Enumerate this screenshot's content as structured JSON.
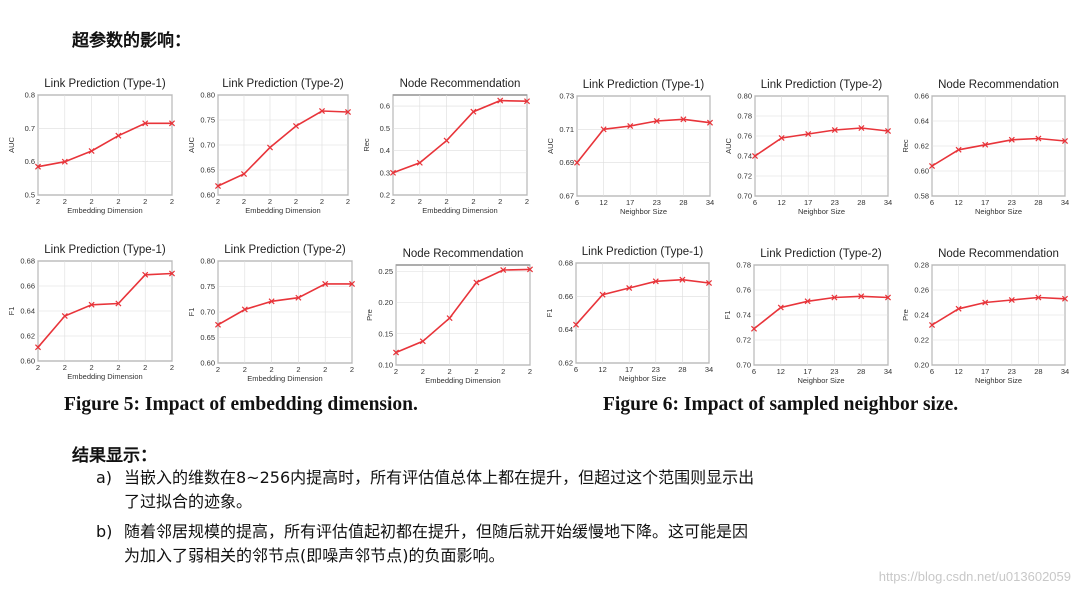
{
  "heading": "超参数的影响：",
  "figures": {
    "fig5_caption": "Figure 5: Impact of embedding dimension.",
    "fig6_caption": "Figure 6: Impact of sampled neighbor size."
  },
  "results": {
    "title": "结果显示：",
    "a_marker": "a)",
    "a_line1": "当嵌入的维数在8~256内提高时，所有评估值总体上都在提升，但超过这个范围则显示出",
    "a_line2": "了过拟合的迹象。",
    "b_marker": "b)",
    "b_line1": "随着邻居规模的提高，所有评估值起初都在提升，但随后就开始缓慢地下降。这可能是因",
    "b_line2": "为加入了弱相关的邻节点(即噪声邻节点)的负面影响。"
  },
  "watermark": "https://blog.csdn.net/u013602059",
  "colors": {
    "line": "#e8343a",
    "grid": "#dddddd",
    "axis": "#333333"
  },
  "chart_data": [
    {
      "id": "f5-lp1-auc",
      "type": "line",
      "title": "Link Prediction (Type-1)",
      "xlabel": "Embedding Dimension",
      "ylabel": "AUC",
      "categories": [
        "2",
        "2",
        "2",
        "2",
        "2",
        "2"
      ],
      "ylim": [
        0.5,
        0.8
      ],
      "yticks": [
        "0.5",
        "0.6",
        "0.7",
        "0.8"
      ],
      "values": [
        0.585,
        0.6,
        0.632,
        0.678,
        0.715,
        0.715
      ]
    },
    {
      "id": "f5-lp2-auc",
      "type": "line",
      "title": "Link Prediction (Type-2)",
      "xlabel": "Embedding Dimension",
      "ylabel": "AUC",
      "categories": [
        "2",
        "2",
        "2",
        "2",
        "2",
        "2"
      ],
      "ylim": [
        0.6,
        0.8
      ],
      "yticks": [
        "0.60",
        "0.65",
        "0.70",
        "0.75",
        "0.80"
      ],
      "values": [
        0.618,
        0.642,
        0.695,
        0.738,
        0.768,
        0.766
      ]
    },
    {
      "id": "f5-nr-rec",
      "type": "line",
      "title": "Node Recommendation",
      "xlabel": "Embedding Dimension",
      "ylabel": "Rec",
      "categories": [
        "2",
        "2",
        "2",
        "2",
        "2",
        "2"
      ],
      "ylim": [
        0.2,
        0.65
      ],
      "yticks": [
        "0.2",
        "0.3",
        "0.4",
        "0.5",
        "0.6"
      ],
      "values": [
        0.3,
        0.345,
        0.445,
        0.575,
        0.625,
        0.622
      ]
    },
    {
      "id": "f6-lp1-auc",
      "type": "line",
      "title": "Link Prediction (Type-1)",
      "xlabel": "Neighbor Size",
      "ylabel": "AUC",
      "categories": [
        "6",
        "12",
        "17",
        "23",
        "28",
        "34"
      ],
      "ylim": [
        0.67,
        0.73
      ],
      "yticks": [
        "0.67",
        "0.69",
        "0.71",
        "0.73"
      ],
      "values": [
        0.69,
        0.71,
        0.712,
        0.715,
        0.716,
        0.714
      ]
    },
    {
      "id": "f6-lp2-auc",
      "type": "line",
      "title": "Link Prediction (Type-2)",
      "xlabel": "Neighbor Size",
      "ylabel": "AUC",
      "categories": [
        "6",
        "12",
        "17",
        "23",
        "28",
        "34"
      ],
      "ylim": [
        0.7,
        0.8
      ],
      "yticks": [
        "0.70",
        "0.72",
        "0.74",
        "0.76",
        "0.78",
        "0.80"
      ],
      "values": [
        0.74,
        0.758,
        0.762,
        0.766,
        0.768,
        0.765
      ]
    },
    {
      "id": "f6-nr-rec",
      "type": "line",
      "title": "Node Recommendation",
      "xlabel": "Neighbor Size",
      "ylabel": "Rec",
      "categories": [
        "6",
        "12",
        "17",
        "23",
        "28",
        "34"
      ],
      "ylim": [
        0.58,
        0.66
      ],
      "yticks": [
        "0.58",
        "0.60",
        "0.62",
        "0.64",
        "0.66"
      ],
      "values": [
        0.604,
        0.617,
        0.621,
        0.625,
        0.626,
        0.624
      ]
    },
    {
      "id": "f5-lp1-f1",
      "type": "line",
      "title": "Link Prediction (Type-1)",
      "xlabel": "Embedding Dimension",
      "ylabel": "F1",
      "categories": [
        "2",
        "2",
        "2",
        "2",
        "2",
        "2"
      ],
      "ylim": [
        0.6,
        0.68
      ],
      "yticks": [
        "0.60",
        "0.62",
        "0.64",
        "0.66",
        "0.68"
      ],
      "values": [
        0.611,
        0.636,
        0.645,
        0.646,
        0.669,
        0.67
      ]
    },
    {
      "id": "f5-lp2-f1",
      "type": "line",
      "title": "Link Prediction (Type-2)",
      "xlabel": "Embedding Dimension",
      "ylabel": "F1",
      "categories": [
        "2",
        "2",
        "2",
        "2",
        "2",
        "2"
      ],
      "ylim": [
        0.6,
        0.8
      ],
      "yticks": [
        "0.60",
        "0.65",
        "0.70",
        "0.75",
        "0.80"
      ],
      "values": [
        0.675,
        0.705,
        0.721,
        0.728,
        0.755,
        0.755
      ]
    },
    {
      "id": "f5-nr-pre",
      "type": "line",
      "title": "Node Recommendation",
      "xlabel": "Embedding Dimension",
      "ylabel": "Pre",
      "categories": [
        "2",
        "2",
        "2",
        "2",
        "2",
        "2"
      ],
      "ylim": [
        0.1,
        0.26
      ],
      "yticks": [
        "0.10",
        "0.15",
        "0.20",
        "0.25"
      ],
      "values": [
        0.12,
        0.138,
        0.175,
        0.232,
        0.252,
        0.253
      ]
    },
    {
      "id": "f6-lp1-f1",
      "type": "line",
      "title": "Link Prediction (Type-1)",
      "xlabel": "Neighbor Size",
      "ylabel": "F1",
      "categories": [
        "6",
        "12",
        "17",
        "23",
        "28",
        "34"
      ],
      "ylim": [
        0.62,
        0.68
      ],
      "yticks": [
        "0.62",
        "0.64",
        "0.66",
        "0.68"
      ],
      "values": [
        0.643,
        0.661,
        0.665,
        0.669,
        0.67,
        0.668
      ]
    },
    {
      "id": "f6-lp2-f1",
      "type": "line",
      "title": "Link Prediction (Type-2)",
      "xlabel": "Neighbor Size",
      "ylabel": "F1",
      "categories": [
        "6",
        "12",
        "17",
        "23",
        "28",
        "34"
      ],
      "ylim": [
        0.7,
        0.78
      ],
      "yticks": [
        "0.70",
        "0.72",
        "0.74",
        "0.76",
        "0.78"
      ],
      "values": [
        0.729,
        0.746,
        0.751,
        0.754,
        0.755,
        0.754
      ]
    },
    {
      "id": "f6-nr-pre",
      "type": "line",
      "title": "Node Recommendation",
      "xlabel": "Neighbor Size",
      "ylabel": "Pre",
      "categories": [
        "6",
        "12",
        "17",
        "23",
        "28",
        "34"
      ],
      "ylim": [
        0.2,
        0.28
      ],
      "yticks": [
        "0.20",
        "0.22",
        "0.24",
        "0.26",
        "0.28"
      ],
      "values": [
        0.232,
        0.245,
        0.25,
        0.252,
        0.254,
        0.253
      ]
    }
  ]
}
